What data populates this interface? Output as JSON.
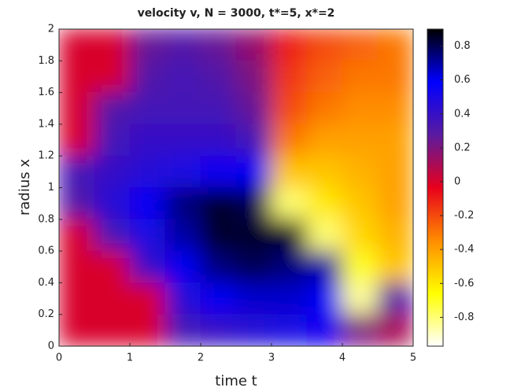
{
  "chart_data": {
    "type": "heatmap",
    "title": "velocity v, N = 3000, t*=5, x*=2",
    "xlabel": "time t",
    "ylabel": "radius x",
    "x": [
      0.25,
      0.75,
      1.25,
      1.75,
      2.25,
      2.75,
      3.25,
      3.75,
      4.25,
      4.75
    ],
    "y": [
      1.9,
      1.7,
      1.5,
      1.3,
      1.1,
      0.9,
      0.7,
      0.5,
      0.3,
      0.1
    ],
    "z": [
      [
        0,
        0,
        0.25,
        0.3,
        0.25,
        0.15,
        -0.1,
        -0.2,
        -0.25,
        -0.3
      ],
      [
        0,
        0,
        0.3,
        0.35,
        0.3,
        0.2,
        -0.15,
        -0.25,
        -0.3,
        -0.3
      ],
      [
        0,
        0.3,
        0.35,
        0.35,
        0.35,
        0.25,
        -0.2,
        -0.3,
        -0.35,
        -0.35
      ],
      [
        0,
        0.35,
        0.4,
        0.4,
        0.4,
        0.35,
        -0.3,
        -0.4,
        -0.4,
        -0.4
      ],
      [
        0.35,
        0.4,
        0.45,
        0.5,
        0.55,
        0.6,
        -0.5,
        -0.5,
        -0.45,
        -0.4
      ],
      [
        0.3,
        0.45,
        0.6,
        0.75,
        0.85,
        0.8,
        -0.8,
        -0.6,
        -0.5,
        -0.4
      ],
      [
        0,
        0.35,
        0.5,
        0.7,
        0.85,
        0.85,
        0.85,
        -0.8,
        -0.55,
        -0.45
      ],
      [
        0,
        0,
        0.4,
        0.6,
        0.75,
        0.8,
        0.75,
        0.7,
        -0.7,
        -0.5
      ],
      [
        0,
        0,
        0,
        0.45,
        0.6,
        0.65,
        0.65,
        0.6,
        -0.85,
        0.3
      ],
      [
        0,
        0,
        0,
        0.35,
        0.4,
        0.45,
        0.5,
        0.55,
        0.2,
        0.1
      ]
    ],
    "xlim": [
      0,
      5
    ],
    "ylim": [
      0,
      2
    ],
    "xticks": [
      0,
      1,
      2,
      3,
      4,
      5
    ],
    "yticks": [
      0,
      0.2,
      0.4,
      0.6,
      0.8,
      1,
      1.2,
      1.4,
      1.6,
      1.8,
      2
    ],
    "clim": [
      -0.97,
      0.9
    ],
    "cticks": [
      -0.8,
      -0.6,
      -0.4,
      -0.2,
      0,
      0.2,
      0.4,
      0.6,
      0.8
    ],
    "colormap": [
      "#ffffff",
      "#ffff00",
      "#ff8c00",
      "#e8001c",
      "#5a1aa0",
      "#0000ff",
      "#000000"
    ],
    "colorbar": true
  }
}
